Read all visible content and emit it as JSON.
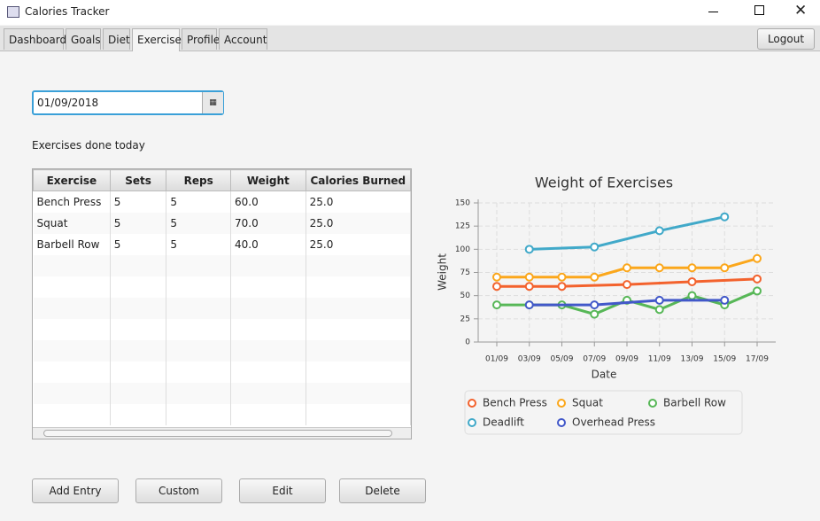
{
  "window": {
    "title": "Calories Tracker"
  },
  "tabs": [
    {
      "label": "Dashboard",
      "selected": false
    },
    {
      "label": "Goals",
      "selected": false
    },
    {
      "label": "Diet",
      "selected": false
    },
    {
      "label": "Exercises",
      "selected": true
    },
    {
      "label": "Profile",
      "selected": false
    },
    {
      "label": "Account",
      "selected": false
    }
  ],
  "logout": "Logout",
  "date_field": "01/09/2018",
  "section_label": "Exercises done today",
  "table": {
    "columns": [
      "Exercise",
      "Sets",
      "Reps",
      "Weight",
      "Calories Burned"
    ],
    "rows": [
      [
        "Bench Press",
        "5",
        "5",
        "60.0",
        "25.0"
      ],
      [
        "Squat",
        "5",
        "5",
        "70.0",
        "25.0"
      ],
      [
        "Barbell Row",
        "5",
        "5",
        "40.0",
        "25.0"
      ]
    ]
  },
  "chart_data": {
    "type": "line",
    "title": "Weight of Exercises",
    "x_label": "Date",
    "y_label": "Weight",
    "categories": [
      "01/09",
      "03/09",
      "05/09",
      "07/09",
      "09/09",
      "11/09",
      "13/09",
      "15/09",
      "17/09"
    ],
    "ylim": [
      0,
      150
    ],
    "yticks": [
      0,
      25,
      50,
      75,
      100,
      125,
      150
    ],
    "grid": true,
    "series": [
      {
        "name": "Bench Press",
        "color": "#f3622d",
        "x": [
          "01/09",
          "03/09",
          "05/09",
          "09/09",
          "13/09",
          "17/09"
        ],
        "values": [
          60,
          60,
          60,
          62,
          65,
          68
        ]
      },
      {
        "name": "Squat",
        "color": "#fba71b",
        "x": [
          "01/09",
          "03/09",
          "05/09",
          "07/09",
          "09/09",
          "11/09",
          "13/09",
          "15/09",
          "17/09"
        ],
        "values": [
          70,
          70,
          70,
          70,
          80,
          80,
          80,
          80,
          90
        ]
      },
      {
        "name": "Barbell Row",
        "color": "#57b757",
        "x": [
          "01/09",
          "03/09",
          "05/09",
          "07/09",
          "09/09",
          "11/09",
          "13/09",
          "15/09",
          "17/09"
        ],
        "values": [
          40,
          40,
          40,
          30,
          45,
          35,
          50,
          40,
          55
        ]
      },
      {
        "name": "Deadlift",
        "color": "#41a9c9",
        "x": [
          "03/09",
          "07/09",
          "11/09",
          "15/09"
        ],
        "values": [
          100,
          102.5,
          120,
          135
        ]
      },
      {
        "name": "Overhead Press",
        "color": "#4258c9",
        "x": [
          "03/09",
          "07/09",
          "11/09",
          "15/09"
        ],
        "values": [
          40,
          40,
          45,
          45
        ]
      }
    ]
  },
  "buttons": [
    "Add Entry",
    "Custom",
    "Edit",
    "Delete"
  ]
}
